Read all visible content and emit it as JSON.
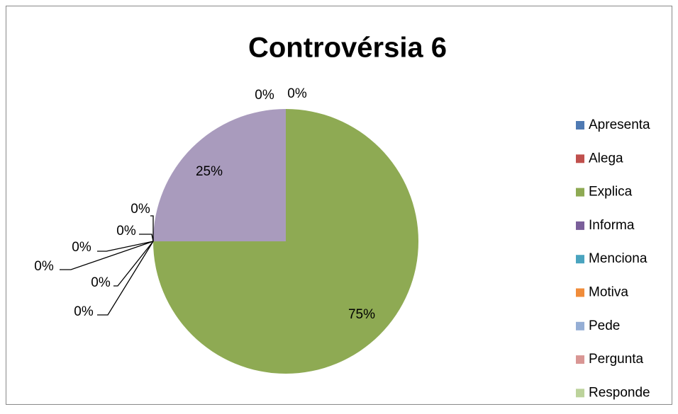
{
  "chart_data": {
    "type": "pie",
    "title": "Controvérsia 6",
    "categories": [
      "Apresenta",
      "Alega",
      "Explica",
      "Informa",
      "Menciona",
      "Motiva",
      "Pede",
      "Pergunta",
      "Responde",
      null
    ],
    "values": [
      0,
      0,
      75,
      0,
      0,
      0,
      0,
      0,
      0,
      25
    ],
    "value_labels": [
      "0%",
      "0%",
      "75%",
      "0%",
      "0%",
      "0%",
      "0%",
      "0%",
      "0%",
      "25%"
    ],
    "colors": [
      "#4f7ab3",
      "#c0504d",
      "#8eaa53",
      "#7a5f9a",
      "#4aa4bf",
      "#f08c3a",
      "#95aed5",
      "#d99694",
      "#bcd39b",
      "#a99bbd"
    ],
    "legend": "right"
  }
}
